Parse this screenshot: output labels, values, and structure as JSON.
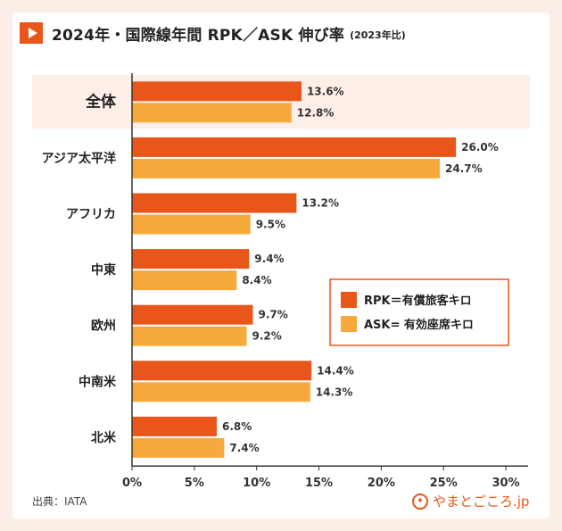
{
  "title": "2024年・国際線年間 RPK／ASK 伸び率",
  "subtitle": "(2023年比)",
  "source": "出典：IATA",
  "brand": "やまとごころ.jp",
  "colors": {
    "rpk": "#e8561a",
    "ask": "#f7aa3c",
    "highlight_bg": "#fdefe8",
    "legend_border": "#e8561a"
  },
  "legend": [
    {
      "label": "RPK＝有償旅客キロ",
      "color": "#e8561a"
    },
    {
      "label": "ASK= 有効座席キロ",
      "color": "#f7aa3c"
    }
  ],
  "chart_data": {
    "type": "bar",
    "orientation": "horizontal",
    "categories": [
      "全体",
      "アジア太平洋",
      "アフリカ",
      "中東",
      "欧州",
      "中南米",
      "北米"
    ],
    "series": [
      {
        "name": "RPK＝有償旅客キロ",
        "values": [
          13.6,
          26.0,
          13.2,
          9.4,
          9.7,
          14.4,
          6.8
        ]
      },
      {
        "name": "ASK= 有効座席キロ",
        "values": [
          12.8,
          24.7,
          9.5,
          8.4,
          9.2,
          14.3,
          7.4
        ]
      }
    ],
    "data_labels": [
      [
        "13.6%",
        "26.0%",
        "13.2%",
        "9.4%",
        "9.7%",
        "14.4%",
        "6.8%"
      ],
      [
        "12.8%",
        "24.7%",
        "9.5%",
        "8.4%",
        "9.2%",
        "14.3%",
        "7.4%"
      ]
    ],
    "x_ticks": [
      "0%",
      "5%",
      "10%",
      "15%",
      "20%",
      "25%",
      "30%"
    ],
    "xlim": [
      0,
      31.5
    ],
    "grid": false,
    "legend_position": "right-middle"
  }
}
